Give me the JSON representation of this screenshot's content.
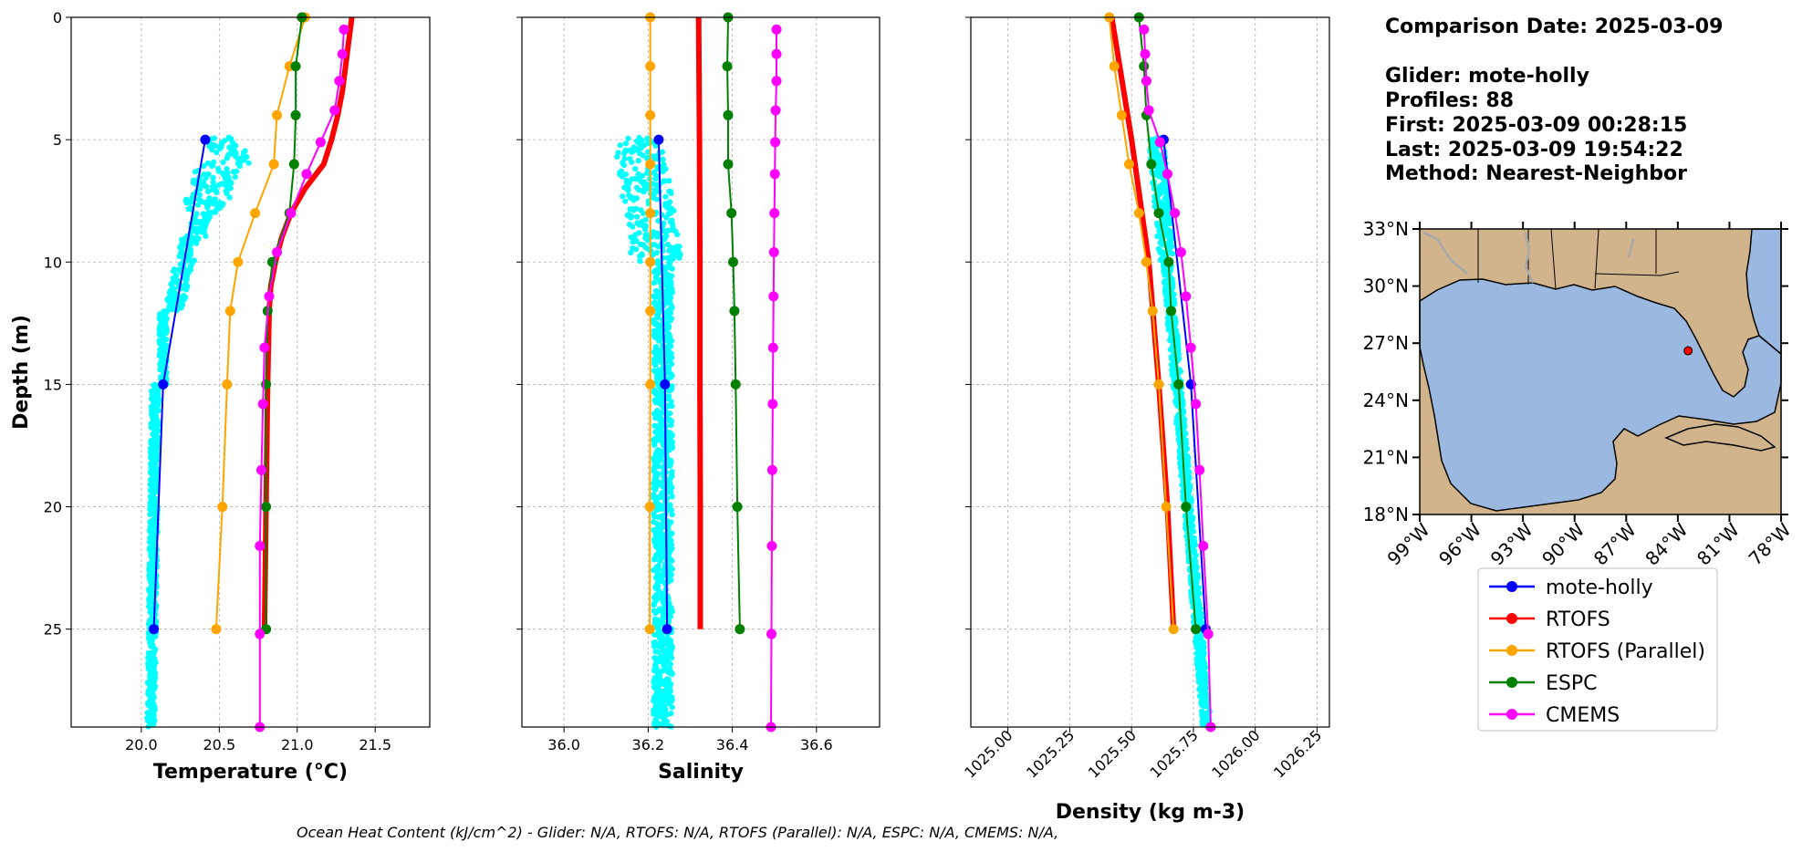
{
  "info": {
    "comparison_date": "Comparison Date: 2025-03-09",
    "glider": "Glider: mote-holly",
    "profiles": "Profiles: 88",
    "first": "First: 2025-03-09 00:28:15",
    "last": "Last: 2025-03-09 19:54:22",
    "method": "Method: Nearest-Neighbor"
  },
  "footer": "Ocean Heat Content (kJ/cm^2) - Glider: N/A,  RTOFS: N/A,  RTOFS (Parallel): N/A,  ESPC: N/A,  CMEMS: N/A,",
  "colors": {
    "mote-holly": "#0000ff",
    "RTOFS": "#ff0000",
    "RTOFS (Parallel)": "#ffa500",
    "ESPC": "#008000",
    "CMEMS": "#ff00ff",
    "raw": "#00ffff",
    "land": "#d2b48c",
    "ocean": "#9bb8e0"
  },
  "map": {
    "lat_ticks": [
      "33°N",
      "30°N",
      "27°N",
      "24°N",
      "21°N",
      "18°N"
    ],
    "lon_ticks": [
      "99°W",
      "96°W",
      "93°W",
      "90°W",
      "87°W",
      "84°W",
      "81°W",
      "78°W"
    ],
    "extent": {
      "lon": [
        -99,
        -78
      ],
      "lat": [
        18,
        33
      ]
    },
    "glider_position": {
      "lon": -83.4,
      "lat": 26.6
    }
  },
  "legend": [
    "mote-holly",
    "RTOFS",
    "RTOFS (Parallel)",
    "ESPC",
    "CMEMS"
  ],
  "chart_data": [
    {
      "type": "line",
      "xlabel": "Temperature (°C)",
      "ylabel": "Depth (m)",
      "xlim": [
        19.55,
        21.85
      ],
      "ylim": [
        29,
        0
      ],
      "xticks": [
        20.0,
        20.5,
        21.0,
        21.5
      ],
      "xtick_labels": [
        "20.0",
        "20.5",
        "21.0",
        "21.5"
      ],
      "yticks": [
        0,
        5,
        10,
        15,
        20,
        25
      ],
      "ytick_labels": [
        "0",
        "5",
        "10",
        "15",
        "20",
        "25"
      ],
      "series": [
        {
          "name": "mote-holly",
          "width": 2,
          "depth": [
            5,
            15,
            25
          ],
          "values": [
            20.41,
            20.14,
            20.08
          ]
        },
        {
          "name": "RTOFS",
          "width": 6,
          "markers": false,
          "depth": [
            0,
            1,
            2,
            3,
            4,
            5,
            6,
            7,
            8,
            9,
            10,
            11,
            12,
            15,
            20,
            25
          ],
          "values": [
            21.35,
            21.33,
            21.31,
            21.29,
            21.26,
            21.22,
            21.17,
            21.05,
            20.96,
            20.9,
            20.86,
            20.83,
            20.82,
            20.81,
            20.8,
            20.79
          ]
        },
        {
          "name": "RTOFS (Parallel)",
          "width": 2,
          "depth": [
            0,
            2,
            4,
            6,
            8,
            10,
            12,
            15,
            20,
            25
          ],
          "values": [
            21.05,
            20.95,
            20.87,
            20.85,
            20.73,
            20.62,
            20.57,
            20.55,
            20.52,
            20.48
          ]
        },
        {
          "name": "ESPC",
          "width": 2,
          "depth": [
            0,
            2,
            4,
            6,
            8,
            10,
            12,
            15,
            20,
            25
          ],
          "values": [
            21.03,
            20.99,
            20.99,
            20.98,
            20.95,
            20.84,
            20.81,
            20.8,
            20.8,
            20.8
          ]
        },
        {
          "name": "CMEMS",
          "width": 2,
          "depth": [
            0.5,
            1.5,
            2.6,
            3.8,
            5.1,
            6.4,
            8.0,
            9.6,
            11.4,
            13.5,
            15.8,
            18.5,
            21.6,
            25.2,
            29
          ],
          "values": [
            21.3,
            21.29,
            21.27,
            21.24,
            21.15,
            21.06,
            20.96,
            20.87,
            20.82,
            20.79,
            20.78,
            20.77,
            20.76,
            20.76,
            20.76
          ]
        }
      ]
    },
    {
      "type": "line",
      "xlabel": "Salinity",
      "xlim": [
        35.9,
        36.75
      ],
      "ylim": [
        29,
        0
      ],
      "xticks": [
        36.0,
        36.2,
        36.4,
        36.6
      ],
      "xtick_labels": [
        "36.0",
        "36.2",
        "36.4",
        "36.6"
      ],
      "yticks": [
        0,
        5,
        10,
        15,
        20,
        25
      ],
      "series": [
        {
          "name": "mote-holly",
          "width": 2,
          "depth": [
            5,
            15,
            25
          ],
          "values": [
            36.225,
            36.24,
            36.245
          ]
        },
        {
          "name": "RTOFS",
          "width": 6,
          "markers": false,
          "depth": [
            0,
            5,
            10,
            15,
            20,
            25
          ],
          "values": [
            36.32,
            36.322,
            36.323,
            36.323,
            36.324,
            36.324
          ]
        },
        {
          "name": "RTOFS (Parallel)",
          "width": 2,
          "depth": [
            0,
            2,
            4,
            6,
            8,
            10,
            12,
            15,
            20,
            25
          ],
          "values": [
            36.205,
            36.205,
            36.205,
            36.205,
            36.205,
            36.205,
            36.205,
            36.205,
            36.204,
            36.204
          ]
        },
        {
          "name": "ESPC",
          "width": 2,
          "depth": [
            0,
            2,
            4,
            6,
            8,
            10,
            12,
            15,
            20,
            25
          ],
          "values": [
            36.39,
            36.388,
            36.39,
            36.39,
            36.398,
            36.402,
            36.405,
            36.408,
            36.412,
            36.418
          ]
        },
        {
          "name": "CMEMS",
          "width": 2,
          "depth": [
            0.5,
            1.5,
            2.6,
            3.8,
            5.1,
            6.4,
            8.0,
            9.6,
            11.4,
            13.5,
            15.8,
            18.5,
            21.6,
            25.2,
            29
          ],
          "values": [
            36.505,
            36.505,
            36.505,
            36.503,
            36.502,
            36.501,
            36.5,
            36.499,
            36.498,
            36.497,
            36.496,
            36.495,
            36.494,
            36.493,
            36.492
          ]
        }
      ]
    },
    {
      "type": "line",
      "xlabel": "Density (kg m-3)",
      "xlim": [
        1024.85,
        1026.3
      ],
      "ylim": [
        29,
        0
      ],
      "xticks": [
        1025.0,
        1025.25,
        1025.5,
        1025.75,
        1026.0,
        1026.25
      ],
      "xtick_labels": [
        "1025.00",
        "1025.25",
        "1025.50",
        "1025.75",
        "1026.00",
        "1026.25"
      ],
      "yticks": [
        0,
        5,
        10,
        15,
        20,
        25
      ],
      "series": [
        {
          "name": "mote-holly",
          "width": 2,
          "depth": [
            5,
            15,
            25
          ],
          "values": [
            1025.63,
            1025.74,
            1025.8
          ]
        },
        {
          "name": "RTOFS",
          "width": 6,
          "markers": false,
          "depth": [
            0,
            5,
            10,
            15,
            20,
            25
          ],
          "values": [
            1025.42,
            1025.5,
            1025.57,
            1025.61,
            1025.645,
            1025.67
          ]
        },
        {
          "name": "RTOFS (Parallel)",
          "width": 2,
          "depth": [
            0,
            2,
            4,
            6,
            8,
            10,
            12,
            15,
            20,
            25
          ],
          "values": [
            1025.41,
            1025.43,
            1025.46,
            1025.49,
            1025.53,
            1025.56,
            1025.585,
            1025.61,
            1025.64,
            1025.67
          ]
        },
        {
          "name": "ESPC",
          "width": 2,
          "depth": [
            0,
            2,
            4,
            6,
            8,
            10,
            12,
            15,
            20,
            25
          ],
          "values": [
            1025.53,
            1025.55,
            1025.56,
            1025.58,
            1025.61,
            1025.65,
            1025.66,
            1025.69,
            1025.72,
            1025.76
          ]
        },
        {
          "name": "CMEMS",
          "width": 2,
          "depth": [
            0.5,
            1.5,
            2.6,
            3.8,
            5.1,
            6.4,
            8.0,
            9.6,
            11.4,
            13.5,
            15.8,
            18.5,
            21.6,
            25.2,
            29
          ],
          "values": [
            1025.55,
            1025.555,
            1025.56,
            1025.57,
            1025.615,
            1025.645,
            1025.675,
            1025.7,
            1025.72,
            1025.74,
            1025.76,
            1025.775,
            1025.79,
            1025.81,
            1025.82
          ]
        }
      ]
    }
  ]
}
